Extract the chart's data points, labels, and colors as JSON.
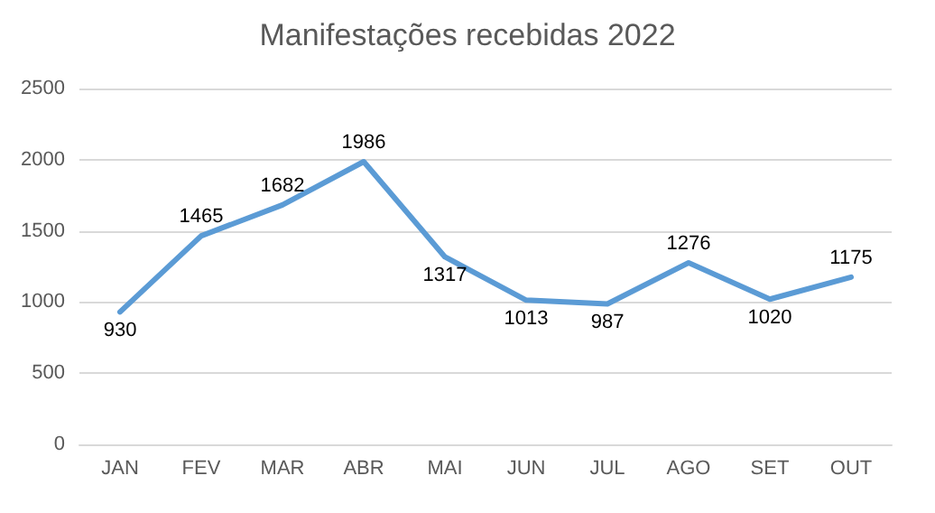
{
  "chart_data": {
    "type": "line",
    "title": "Manifestações recebidas 2022",
    "categories": [
      "JAN",
      "FEV",
      "MAR",
      "ABR",
      "MAI",
      "JUN",
      "JUL",
      "AGO",
      "SET",
      "OUT"
    ],
    "series": [
      {
        "color": "#5b9bd5",
        "values": [
          930,
          1465,
          1682,
          1986,
          1317,
          1013,
          987,
          1276,
          1020,
          1175
        ]
      }
    ],
    "ylim": [
      0,
      2500
    ],
    "yticks": [
      0,
      500,
      1000,
      1500,
      2000,
      2500
    ],
    "grid": "y",
    "data_labels": true,
    "marker": "none",
    "line_style": "solid"
  }
}
